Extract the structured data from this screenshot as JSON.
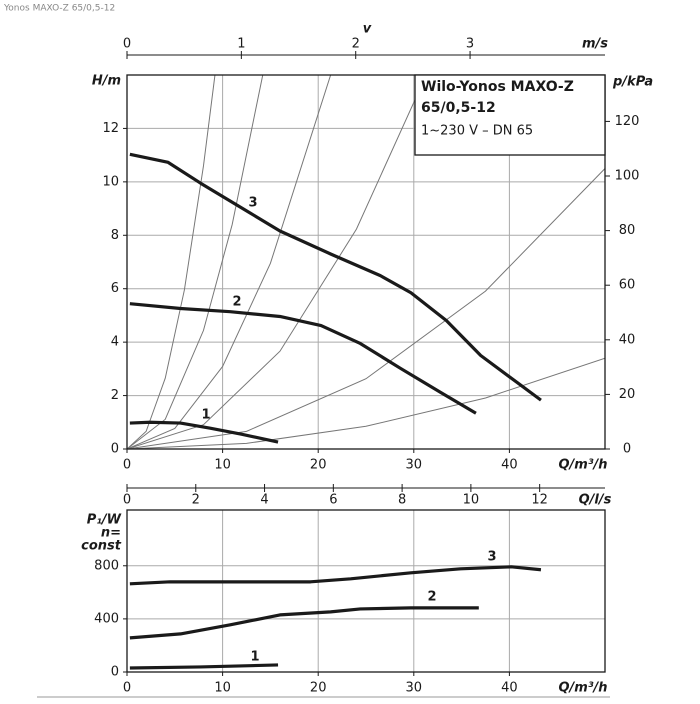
{
  "header": "Yonos MAXO-Z 65/0,5-12",
  "chart_data": [
    {
      "type": "line",
      "xlabel": "Q/m³/h",
      "ylabel": "H/m",
      "y2label": "p/kPa",
      "x2label": "m/s",
      "x2title": "v",
      "annotation": [
        "Wilo-Yonos MAXO-Z",
        "65/0,5-12",
        "1~230 V – DN 65"
      ],
      "xlim": [
        0,
        50
      ],
      "xticks": [
        0,
        10,
        20,
        30,
        40
      ],
      "ylim": [
        0,
        14
      ],
      "yticks": [
        0,
        2,
        4,
        6,
        8,
        10,
        12
      ],
      "y2lim": [
        0,
        137
      ],
      "y2ticks": [
        0,
        20,
        40,
        60,
        80,
        100,
        120
      ],
      "x2lim": [
        0,
        4.18
      ],
      "x2ticks": [
        0,
        1,
        2,
        3
      ],
      "grid": true,
      "series": [
        {
          "name": "1",
          "color": "#1a1a1a",
          "x": [
            0.3,
            2.4,
            5.6,
            8.7,
            11.9,
            15.8
          ],
          "values": [
            0.97,
            1.0,
            0.97,
            0.78,
            0.56,
            0.26
          ]
        },
        {
          "name": "2",
          "color": "#1a1a1a",
          "x": [
            0.3,
            5.6,
            10.8,
            16,
            20.3,
            24.4,
            28.6,
            32.8,
            36.5
          ],
          "values": [
            5.44,
            5.26,
            5.14,
            4.96,
            4.62,
            3.95,
            3.02,
            2.12,
            1.34
          ]
        },
        {
          "name": "3",
          "color": "#1a1a1a",
          "x": [
            0.3,
            4.3,
            7.7,
            12.9,
            16,
            21.3,
            26.5,
            29.7,
            33.4,
            37,
            43.3
          ],
          "values": [
            11.03,
            10.73,
            9.95,
            8.83,
            8.16,
            7.3,
            6.49,
            5.85,
            4.81,
            3.5,
            1.83
          ]
        }
      ],
      "system_color": "#777777",
      "system_curves": [
        {
          "x": [
            0,
            2,
            4,
            6,
            8,
            9.2
          ],
          "values": [
            0,
            0.66,
            2.65,
            5.95,
            10.6,
            14
          ]
        },
        {
          "x": [
            0,
            4,
            8,
            11,
            14.2
          ],
          "values": [
            0,
            1.11,
            4.44,
            8.4,
            14
          ]
        },
        {
          "x": [
            0,
            5,
            10,
            15,
            21.3
          ],
          "values": [
            0,
            0.77,
            3.09,
            6.95,
            14
          ]
        },
        {
          "x": [
            0,
            8,
            16,
            24,
            31.3
          ],
          "values": [
            0,
            0.91,
            3.66,
            8.23,
            14
          ]
        },
        {
          "x": [
            0,
            12.5,
            25,
            37.5,
            50
          ],
          "values": [
            0,
            0.66,
            2.63,
            5.91,
            10.5
          ]
        },
        {
          "x": [
            0,
            12.5,
            25,
            37.5,
            50
          ],
          "values": [
            0,
            0.21,
            0.85,
            1.91,
            3.4
          ]
        }
      ]
    },
    {
      "type": "line",
      "xlabel": "Q/m³/h",
      "ylabel": [
        "P₁/W",
        "n=",
        "const"
      ],
      "x2label": "Q/l/s",
      "xlim": [
        0,
        50
      ],
      "xticks": [
        0,
        10,
        20,
        30,
        40
      ],
      "ylim": [
        0,
        1220
      ],
      "yticks": [
        0,
        400,
        800
      ],
      "x2lim": [
        0,
        13.9
      ],
      "x2ticks": [
        0,
        2,
        4,
        6,
        8,
        10,
        12
      ],
      "grid": true,
      "series": [
        {
          "name": "1",
          "color": "#1a1a1a",
          "x": [
            0.3,
            7.7,
            15.8
          ],
          "values": [
            30,
            38,
            53
          ]
        },
        {
          "name": "2",
          "color": "#1a1a1a",
          "x": [
            0.3,
            5.6,
            10.8,
            16,
            21.3,
            24.4,
            29.7,
            36.8
          ],
          "values": [
            257,
            287,
            355,
            430,
            453,
            475,
            483,
            483
          ]
        },
        {
          "name": "3",
          "color": "#1a1a1a",
          "x": [
            0.3,
            4.5,
            12.9,
            19.2,
            23.4,
            29.7,
            34.9,
            40.2,
            43.3
          ],
          "values": [
            664,
            679,
            679,
            679,
            702,
            747,
            777,
            792,
            770
          ]
        }
      ]
    }
  ]
}
